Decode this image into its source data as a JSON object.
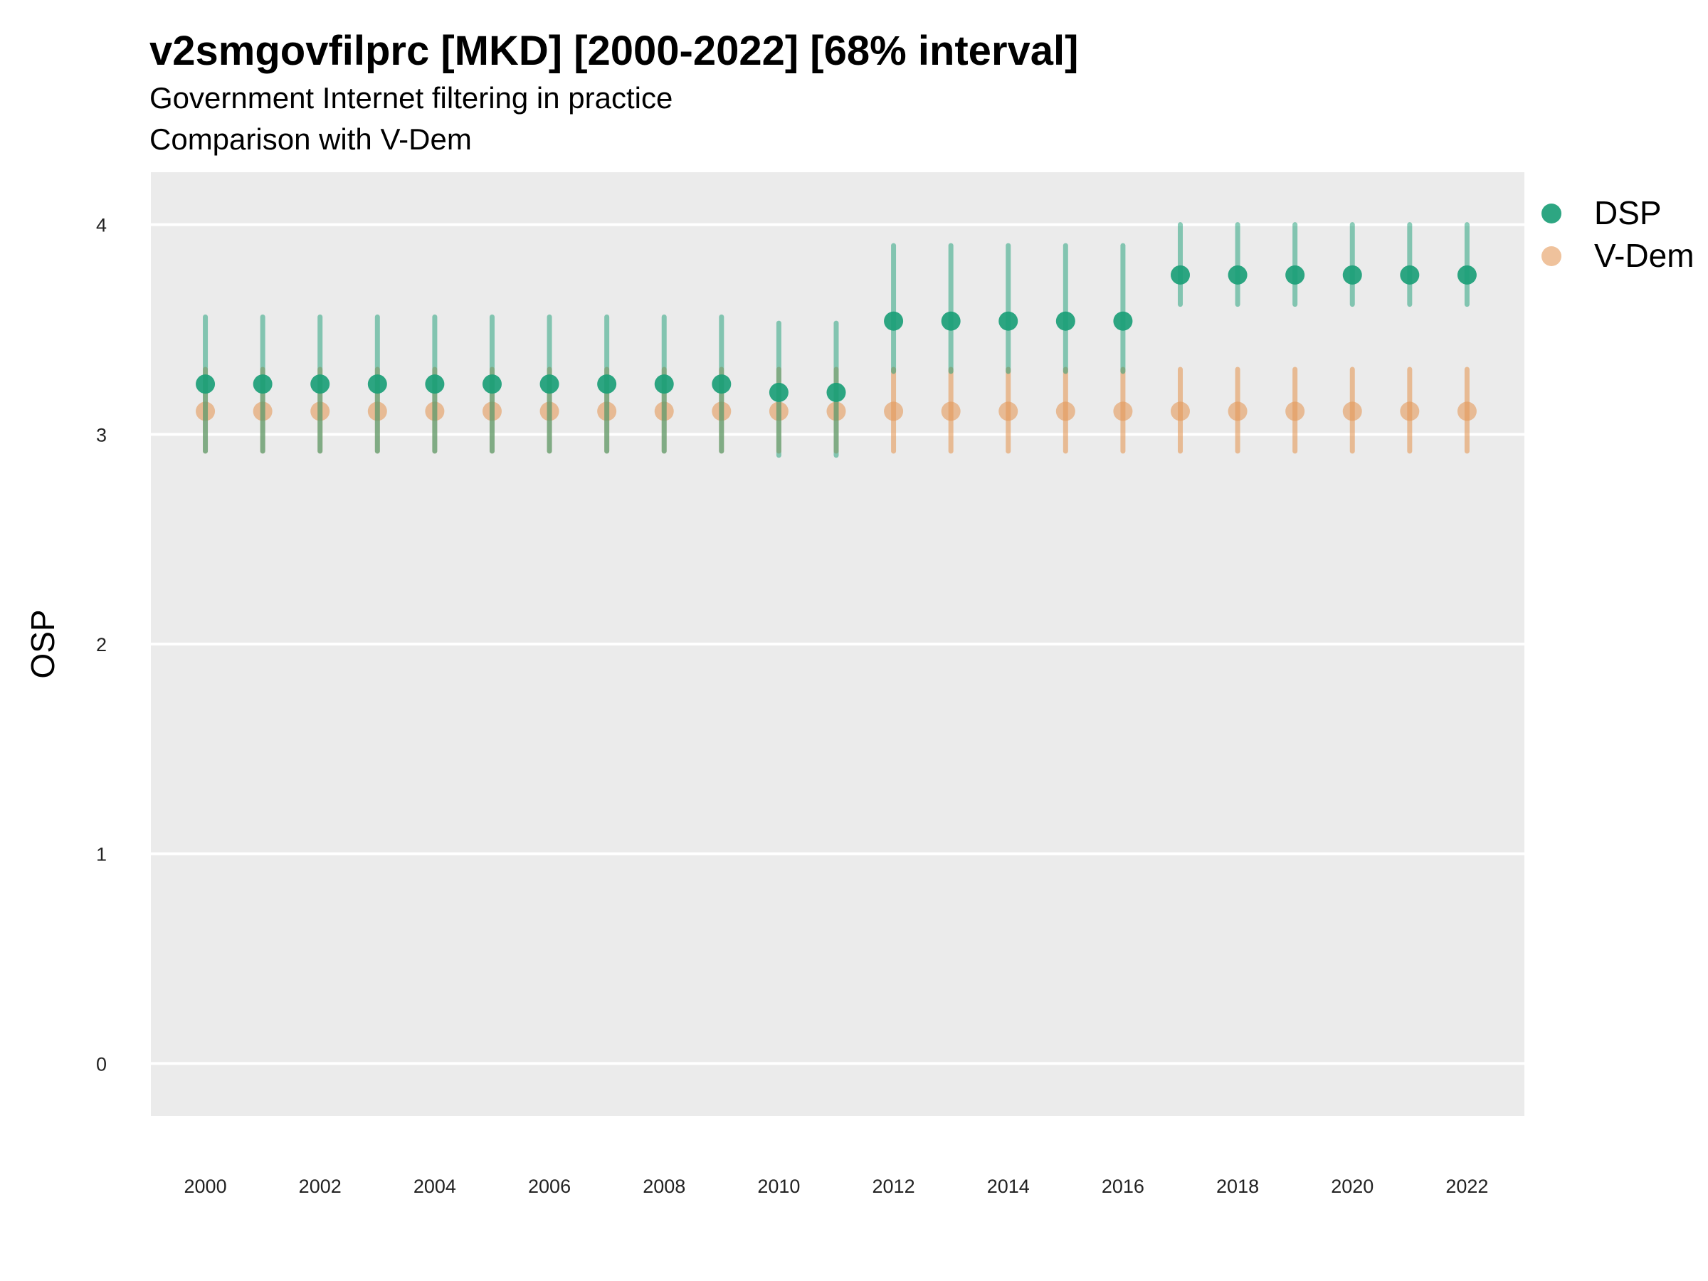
{
  "title": "v2smgovfilprc [MKD] [2000-2022] [68% interval]",
  "subtitle": "Government Internet filtering in practice",
  "caption": "Comparison with V-Dem",
  "colors": {
    "panel_background": "#ebebeb",
    "grid": "#ffffff",
    "dsp": "#1b9e77",
    "vdem": "#e59a5a"
  },
  "chart_data": {
    "type": "scatter",
    "title": "v2smgovfilprc [MKD] [2000-2022] [68% interval]",
    "subtitle": "Government Internet filtering in practice",
    "caption": "Comparison with V-Dem",
    "xlabel": "",
    "ylabel": "OSP",
    "x_ticks": [
      "2000",
      "2002",
      "2004",
      "2006",
      "2008",
      "2010",
      "2012",
      "2014",
      "2016",
      "2018",
      "2020",
      "2022"
    ],
    "y_ticks": [
      "0",
      "1",
      "2",
      "3",
      "4"
    ],
    "xlim": [
      1999.05,
      2023.0
    ],
    "ylim": [
      -0.25,
      4.25
    ],
    "grid": "horizontal major lines only",
    "legend_position": "right",
    "x": [
      2000,
      2001,
      2002,
      2003,
      2004,
      2005,
      2006,
      2007,
      2008,
      2009,
      2010,
      2011,
      2012,
      2013,
      2014,
      2015,
      2016,
      2017,
      2018,
      2019,
      2020,
      2021,
      2022
    ],
    "series": [
      {
        "name": "DSP",
        "color": "#1b9e77",
        "values": [
          3.24,
          3.24,
          3.24,
          3.24,
          3.24,
          3.24,
          3.24,
          3.24,
          3.24,
          3.24,
          3.2,
          3.2,
          3.54,
          3.54,
          3.54,
          3.54,
          3.54,
          3.76,
          3.76,
          3.76,
          3.76,
          3.76,
          3.76
        ],
        "lower": [
          2.92,
          2.92,
          2.92,
          2.92,
          2.92,
          2.92,
          2.92,
          2.92,
          2.92,
          2.92,
          2.9,
          2.9,
          3.3,
          3.3,
          3.3,
          3.3,
          3.3,
          3.62,
          3.62,
          3.62,
          3.62,
          3.62,
          3.62
        ],
        "upper": [
          3.56,
          3.56,
          3.56,
          3.56,
          3.56,
          3.56,
          3.56,
          3.56,
          3.56,
          3.56,
          3.53,
          3.53,
          3.9,
          3.9,
          3.9,
          3.9,
          3.9,
          4.0,
          4.0,
          4.0,
          4.0,
          4.0,
          4.0
        ]
      },
      {
        "name": "V-Dem",
        "color": "#e59a5a",
        "values": [
          3.11,
          3.11,
          3.11,
          3.11,
          3.11,
          3.11,
          3.11,
          3.11,
          3.11,
          3.11,
          3.11,
          3.11,
          3.11,
          3.11,
          3.11,
          3.11,
          3.11,
          3.11,
          3.11,
          3.11,
          3.11,
          3.11,
          3.11
        ],
        "lower": [
          2.92,
          2.92,
          2.92,
          2.92,
          2.92,
          2.92,
          2.92,
          2.92,
          2.92,
          2.92,
          2.92,
          2.92,
          2.92,
          2.92,
          2.92,
          2.92,
          2.92,
          2.92,
          2.92,
          2.92,
          2.92,
          2.92,
          2.92
        ],
        "upper": [
          3.31,
          3.31,
          3.31,
          3.31,
          3.31,
          3.31,
          3.31,
          3.31,
          3.31,
          3.31,
          3.31,
          3.31,
          3.31,
          3.31,
          3.31,
          3.31,
          3.31,
          3.31,
          3.31,
          3.31,
          3.31,
          3.31,
          3.31
        ]
      }
    ]
  }
}
